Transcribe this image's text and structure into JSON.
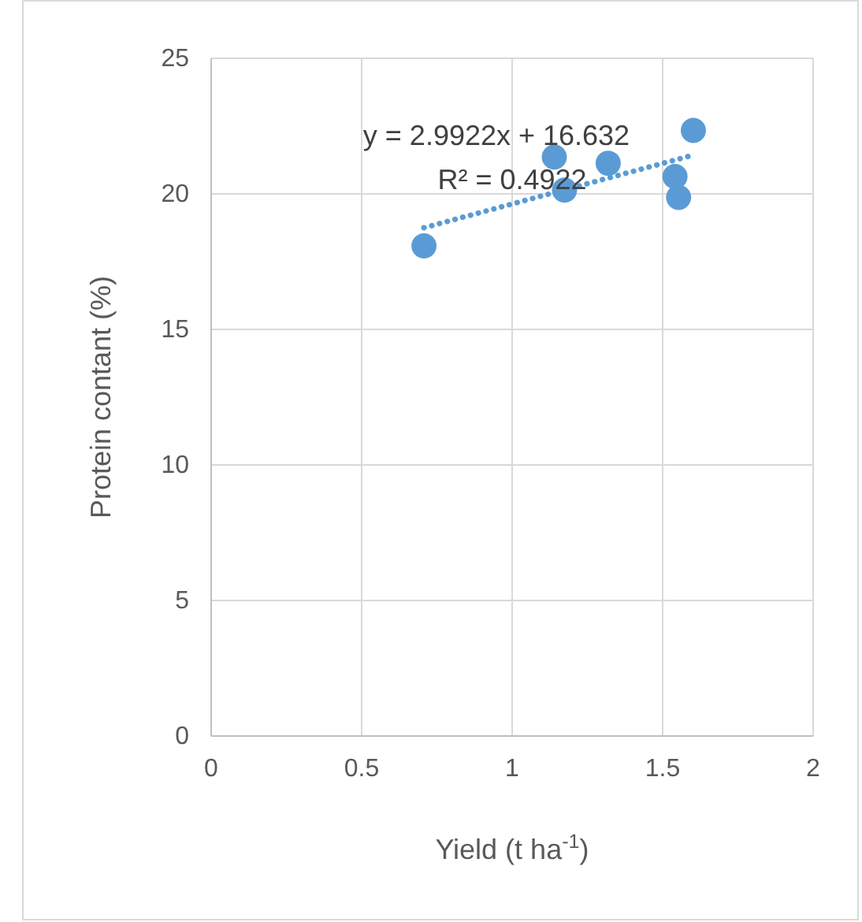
{
  "chart_data": {
    "type": "scatter",
    "xlabel": "Yield (t ha$^{-1}$)",
    "ylabel": "Protein contant (%)",
    "xlim": [
      0,
      2
    ],
    "xticks": [
      0,
      0.5,
      1,
      1.5,
      2
    ],
    "ylim": [
      0,
      25
    ],
    "yticks": [
      0,
      5,
      10,
      15,
      20,
      25
    ],
    "grid": true,
    "marker": "circle",
    "series": [
      {
        "color": "#5b9bd5",
        "x": [
          0.707,
          1.14,
          1.174,
          1.319,
          1.541,
          1.553,
          1.602
        ],
        "values": [
          18.08,
          21.36,
          20.14,
          21.13,
          20.64,
          19.87,
          22.34
        ]
      },
      {
        "type": "line",
        "color": "#5b9bd5",
        "line_style": "dotted",
        "marker": "none",
        "x": [
          0.707,
          1.602
        ],
        "values": [
          18.75,
          21.43
        ]
      }
    ],
    "annotations": [
      "y = 2.9922x + 16.632",
      "R² = 0.4922"
    ]
  }
}
